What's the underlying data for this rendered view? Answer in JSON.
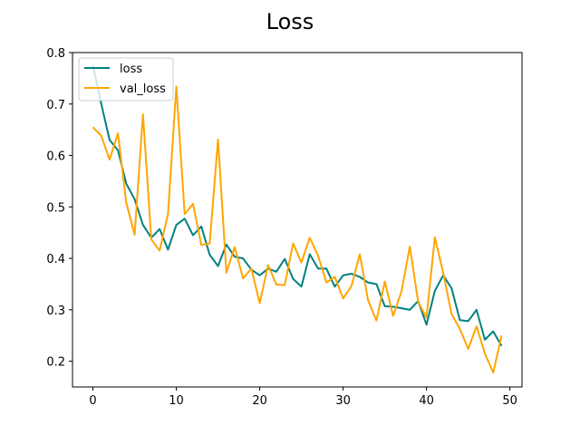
{
  "chart_data": {
    "type": "line",
    "title": "Loss",
    "xlabel": "",
    "ylabel": "",
    "xlim": [
      -2.45,
      51.45
    ],
    "ylim": [
      0.15,
      0.8
    ],
    "xticks": [
      0,
      10,
      20,
      30,
      40,
      50
    ],
    "yticks": [
      0.2,
      0.3,
      0.4,
      0.5,
      0.6,
      0.7,
      0.8
    ],
    "xtick_labels": [
      "0",
      "10",
      "20",
      "30",
      "40",
      "50"
    ],
    "ytick_labels": [
      "0.2",
      "0.3",
      "0.4",
      "0.5",
      "0.6",
      "0.7",
      "0.8"
    ],
    "grid": false,
    "legend_position": "top-left",
    "x": [
      0,
      1,
      2,
      3,
      4,
      5,
      6,
      7,
      8,
      9,
      10,
      11,
      12,
      13,
      14,
      15,
      16,
      17,
      18,
      19,
      20,
      21,
      22,
      23,
      24,
      25,
      26,
      27,
      28,
      29,
      30,
      31,
      32,
      33,
      34,
      35,
      36,
      37,
      38,
      39,
      40,
      41,
      42,
      43,
      44,
      45,
      46,
      47,
      48,
      49
    ],
    "series": [
      {
        "name": "loss",
        "color": "#008080",
        "values": [
          0.775,
          0.7,
          0.63,
          0.61,
          0.545,
          0.515,
          0.465,
          0.44,
          0.457,
          0.417,
          0.465,
          0.477,
          0.445,
          0.462,
          0.407,
          0.385,
          0.427,
          0.403,
          0.4,
          0.378,
          0.367,
          0.38,
          0.374,
          0.399,
          0.36,
          0.345,
          0.408,
          0.38,
          0.38,
          0.345,
          0.367,
          0.37,
          0.364,
          0.353,
          0.35,
          0.307,
          0.306,
          0.303,
          0.3,
          0.317,
          0.271,
          0.337,
          0.367,
          0.342,
          0.28,
          0.278,
          0.3,
          0.242,
          0.258,
          0.23
        ]
      },
      {
        "name": "val_loss",
        "color": "#ffa500",
        "values": [
          0.655,
          0.638,
          0.592,
          0.643,
          0.508,
          0.446,
          0.68,
          0.437,
          0.415,
          0.486,
          0.734,
          0.486,
          0.506,
          0.426,
          0.429,
          0.631,
          0.372,
          0.422,
          0.361,
          0.38,
          0.313,
          0.387,
          0.349,
          0.348,
          0.429,
          0.392,
          0.44,
          0.405,
          0.353,
          0.364,
          0.322,
          0.346,
          0.408,
          0.318,
          0.279,
          0.355,
          0.288,
          0.336,
          0.423,
          0.315,
          0.285,
          0.441,
          0.372,
          0.292,
          0.263,
          0.224,
          0.268,
          0.215,
          0.178,
          0.25
        ]
      }
    ]
  }
}
